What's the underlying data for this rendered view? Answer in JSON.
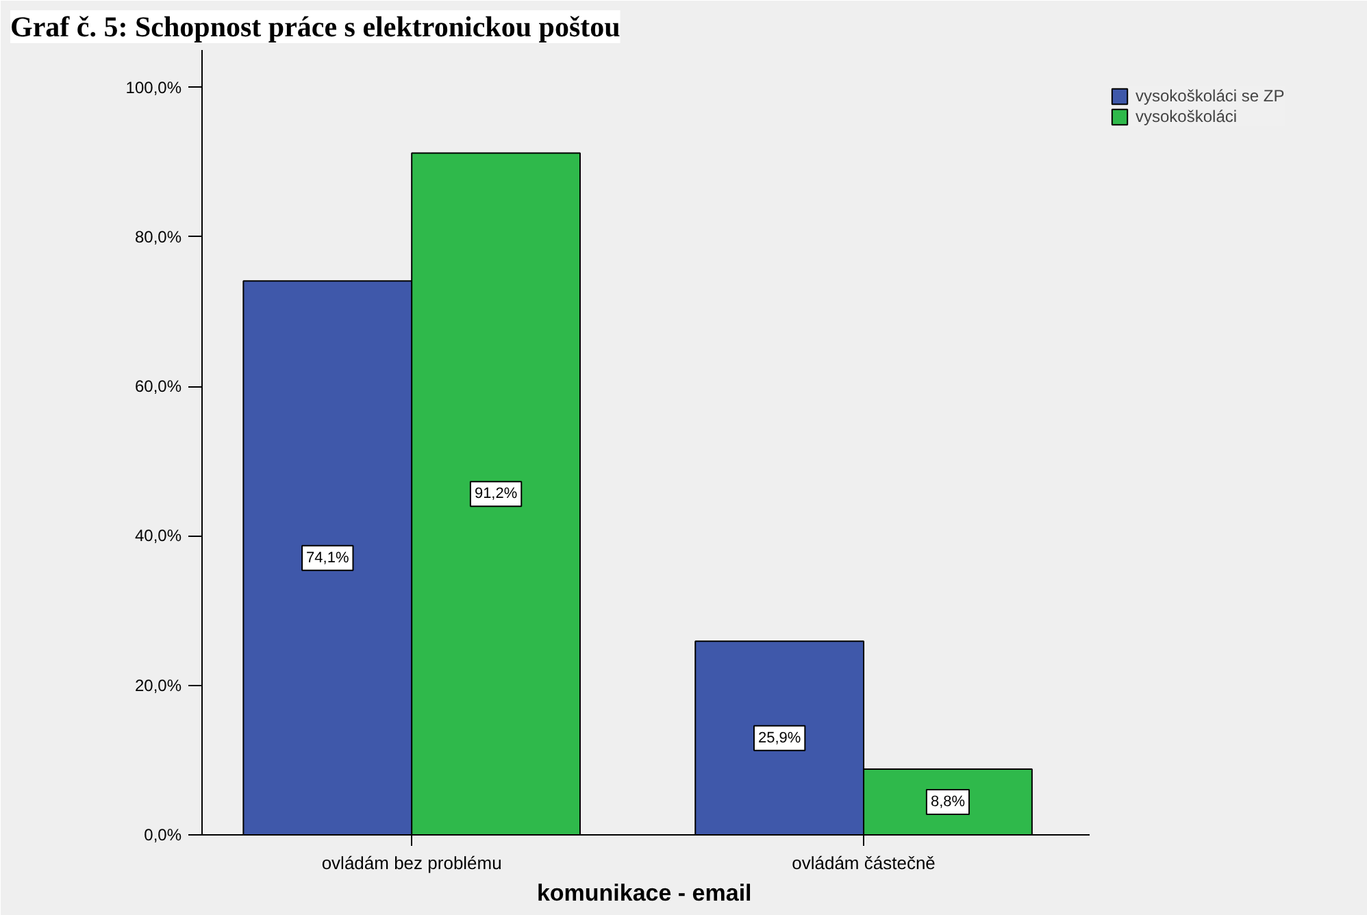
{
  "chart_data": {
    "type": "bar",
    "title": "Graf č. 5: Schopnost práce s elektronickou poštou",
    "xlabel": "komunikace - email",
    "categories": [
      "ovládám bez problému",
      "ovládám částečně"
    ],
    "series": [
      {
        "name": "vysokoškoláci se ZP",
        "color": "#3f58aa",
        "values": [
          74.1,
          25.9
        ],
        "value_labels": [
          "74,1%",
          "25,9%"
        ]
      },
      {
        "name": "vysokoškoláci",
        "color": "#2fb94b",
        "values": [
          91.2,
          8.8
        ],
        "value_labels": [
          "91,2%",
          "8,8%"
        ]
      }
    ],
    "ylim": [
      0,
      105
    ],
    "yticks": [
      {
        "value": 0,
        "label": "0,0%"
      },
      {
        "value": 20,
        "label": "20,0%"
      },
      {
        "value": 40,
        "label": "40,0%"
      },
      {
        "value": 60,
        "label": "60,0%"
      },
      {
        "value": 80,
        "label": "80,0%"
      },
      {
        "value": 100,
        "label": "100,0%"
      }
    ],
    "grid": false,
    "legend": "top right"
  }
}
